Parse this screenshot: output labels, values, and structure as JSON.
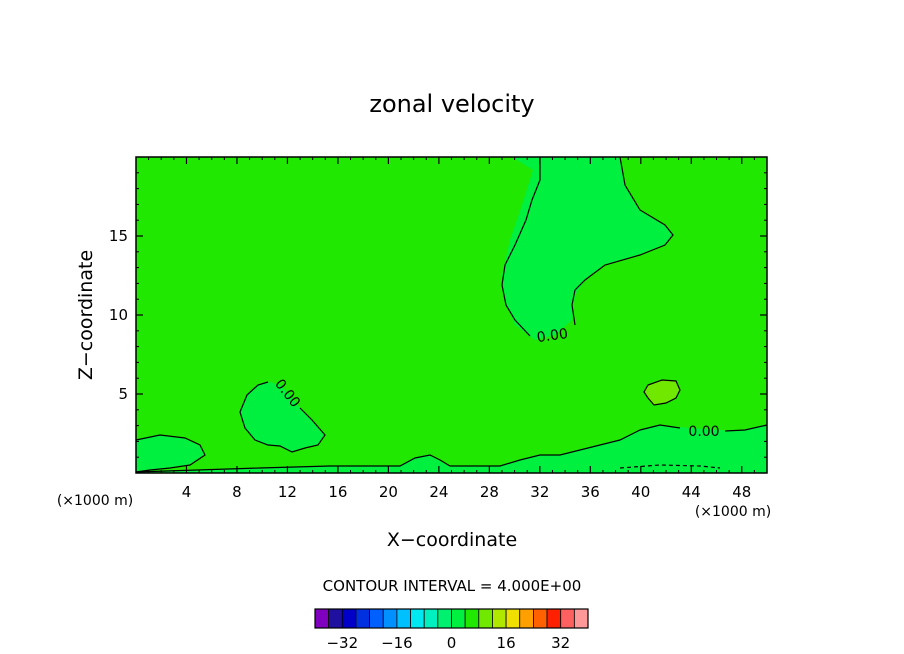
{
  "chart_data": {
    "type": "contour",
    "title": "zonal velocity",
    "xlabel": "X−coordinate",
    "ylabel": "Z−coordinate",
    "x_unit": "(×1000 m)",
    "y_unit": "(×1000 m)",
    "xlim": [
      0,
      50
    ],
    "ylim": [
      0,
      20
    ],
    "xticks": [
      4,
      8,
      12,
      16,
      20,
      24,
      28,
      32,
      36,
      40,
      44,
      48
    ],
    "yticks": [
      5,
      10,
      15
    ],
    "contour_interval_text": "CONTOUR INTERVAL = 4.000E+00",
    "contour_labels": [
      "0.00",
      "0.00",
      "0.00"
    ],
    "colorbar": {
      "tick_labels": [
        "−32",
        "−16",
        "0",
        "16",
        "32"
      ],
      "tick_values": [
        -32,
        -16,
        0,
        16,
        32
      ],
      "levels": [
        -36,
        -32,
        -28,
        -24,
        -20,
        -16,
        -12,
        -8,
        -4,
        0,
        4,
        8,
        12,
        16,
        20,
        24,
        28,
        32,
        36
      ],
      "colors": [
        "#8000c0",
        "#2010a0",
        "#0000c8",
        "#0030e0",
        "#0060ff",
        "#0090ff",
        "#00c0ff",
        "#00e8f0",
        "#00f0c0",
        "#00f070",
        "#00f040",
        "#20e800",
        "#70e800",
        "#b0e800",
        "#f0e000",
        "#ffa000",
        "#ff6000",
        "#ff2000",
        "#ff6060",
        "#ff9898"
      ]
    },
    "fill_colors": {
      "background": "#20e800",
      "positive_region": "#00f040",
      "high_region": "#70e800"
    }
  }
}
